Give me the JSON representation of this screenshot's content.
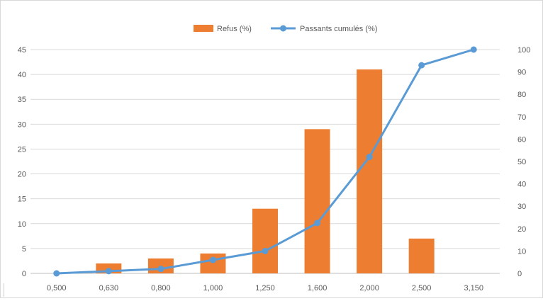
{
  "chart_data": {
    "type": "bar",
    "categories": [
      "0,500",
      "0,630",
      "0,800",
      "1,000",
      "1,250",
      "1,600",
      "2,000",
      "2,500",
      "3,150"
    ],
    "series": [
      {
        "name": "Refus (%)",
        "type": "bar",
        "axis": "left",
        "color": "#ED7D31",
        "values": [
          0,
          2,
          3,
          4,
          13,
          29,
          41,
          7,
          0
        ]
      },
      {
        "name": "Passants cumulés (%)",
        "type": "line",
        "axis": "right",
        "color": "#5B9BD5",
        "values": [
          0,
          1,
          2,
          6,
          10,
          22.5,
          52,
          93,
          100
        ]
      }
    ],
    "y_left": {
      "ylim": [
        0,
        45
      ],
      "ticks": [
        0,
        5,
        10,
        15,
        20,
        25,
        30,
        35,
        40,
        45
      ]
    },
    "y_right": {
      "ylim": [
        0,
        100
      ],
      "ticks": [
        0,
        10,
        20,
        30,
        40,
        50,
        60,
        70,
        80,
        90,
        100
      ]
    },
    "grid": true,
    "legend_position": "top"
  }
}
